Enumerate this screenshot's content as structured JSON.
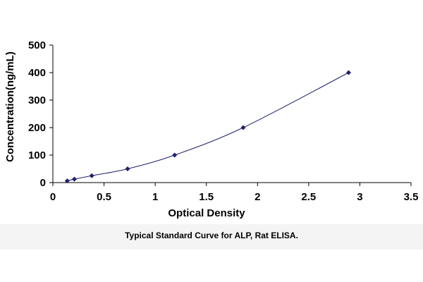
{
  "caption": "Typical Standard Curve for ALP, Rat ELISA.",
  "chart_data": {
    "type": "scatter",
    "title": "",
    "xlabel": "Optical Density",
    "ylabel": "Concentration(ng/mL)",
    "xlim": [
      0,
      3.5
    ],
    "ylim": [
      0,
      500
    ],
    "x_ticks": [
      "0",
      "0.5",
      "1",
      "1.5",
      "2",
      "2.5",
      "3",
      "3.5"
    ],
    "y_ticks": [
      "0",
      "100",
      "200",
      "300",
      "400",
      "500"
    ],
    "grid": false,
    "legend": "none",
    "series": [
      {
        "marker": "diamond",
        "trendline": "smooth curve",
        "color": "#1f1f6e",
        "points": [
          {
            "x": 0.14,
            "y": 6.25
          },
          {
            "x": 0.21,
            "y": 12.5
          },
          {
            "x": 0.38,
            "y": 25
          },
          {
            "x": 0.73,
            "y": 50
          },
          {
            "x": 1.19,
            "y": 100
          },
          {
            "x": 1.86,
            "y": 200
          },
          {
            "x": 2.89,
            "y": 400
          }
        ]
      }
    ]
  }
}
